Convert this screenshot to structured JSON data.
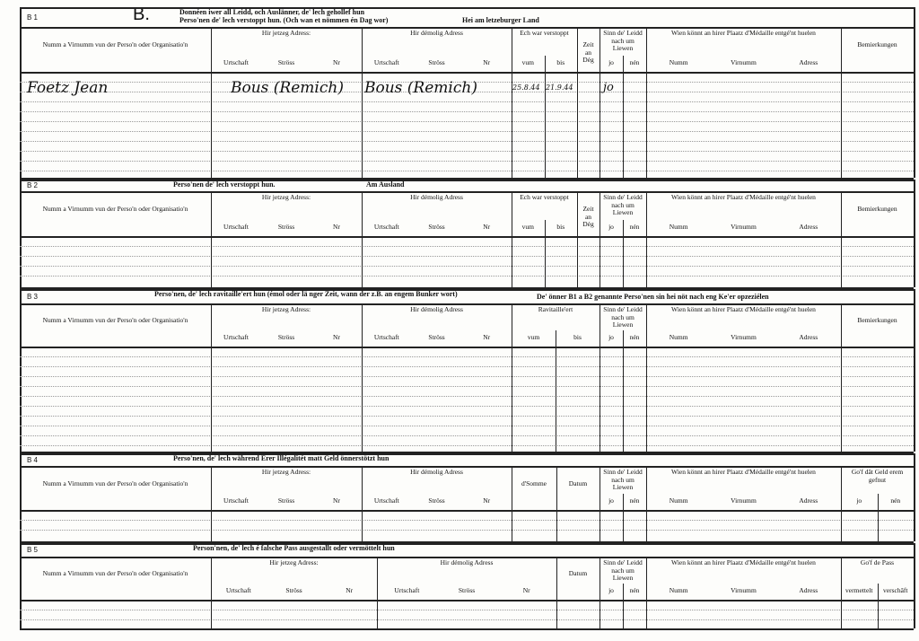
{
  "form_letter": "B.",
  "sections": [
    {
      "id": "B 1",
      "heading": [
        "Donnéen iwer all Leidd, och Auslänner, de' lech gehollef hun",
        "Perso'nen de' lech verstoppt hun. (Och wan et nömmen én Dag wor)"
      ],
      "region": "Hei am letzeburger Land",
      "columns": [
        {
          "label": "Numm a Virnumm vun der Perso'n oder Organisatio'n"
        },
        {
          "label": "Hir jetzeg Adress:",
          "sub": [
            "Urtschaft",
            "Ströss",
            "Nr"
          ]
        },
        {
          "label": "Hir démolig Adress",
          "sub": [
            "Urtschaft",
            "Ströss",
            "Nr"
          ]
        },
        {
          "label": "Ech war verstoppt",
          "sub": [
            "vum",
            "bis"
          ]
        },
        {
          "label": "Zeit an Dég"
        },
        {
          "label": "Sinn de' Leidd nach um Liewen",
          "sub": [
            "jo",
            "nén"
          ]
        },
        {
          "label": "Wien könnt an hirer Plaatz d'Médaille entgé'nt huelen",
          "sub": [
            "Numm",
            "Virnumm",
            "Adress"
          ]
        },
        {
          "label": "Bemierkungen"
        }
      ],
      "entries": [
        {
          "name": "Foetz Jean",
          "current_address": "Bous (Remich)",
          "former_address": "Bous (Remich)",
          "from": "25.8.44",
          "to": "21.9.44",
          "alive": "jo"
        }
      ]
    },
    {
      "id": "B 2",
      "heading": [
        "Perso'nen de' lech verstoppt hun."
      ],
      "region": "Am Ausland",
      "columns": [
        {
          "label": "Numm a Virnumm vun der Perso'n oder Organisatio'n"
        },
        {
          "label": "Hir jetzeg Adress:",
          "sub": [
            "Urtschaft",
            "Ströss",
            "Nr"
          ]
        },
        {
          "label": "Hir démolig Adress",
          "sub": [
            "Urtschaft",
            "Ströss",
            "Nr"
          ]
        },
        {
          "label": "Ech war verstoppt",
          "sub": [
            "vum",
            "bis"
          ]
        },
        {
          "label": "Zeit an Dég"
        },
        {
          "label": "Sinn de' Leidd nach um Liewen",
          "sub": [
            "jo",
            "nén"
          ]
        },
        {
          "label": "Wien könnt an hirer Plaatz d'Médaille entgé'nt huelen",
          "sub": [
            "Numm",
            "Virnumm",
            "Adress"
          ]
        },
        {
          "label": "Bemierkungen"
        }
      ]
    },
    {
      "id": "B 3",
      "heading": [
        "Perso'nen, de' lech ravitaille'ert hun (émol oder lä nger Zeit, wann der z.B. an engem Bunker wort)"
      ],
      "note": "De' önner B1 a B2 genannte Perso'nen sin hei nöt nach eng Ke'er opzeziélen",
      "columns": [
        {
          "label": "Numm a Virnumm vun der Perso'n oder Organisatio'n"
        },
        {
          "label": "Hir jetzeg Adress:",
          "sub": [
            "Urtschaft",
            "Ströss",
            "Nr"
          ]
        },
        {
          "label": "Hir démolig Adress",
          "sub": [
            "Urtschaft",
            "Ströss",
            "Nr"
          ]
        },
        {
          "label": "Ravitaille'ert",
          "sub": [
            "vum",
            "bis"
          ]
        },
        {
          "label": "Sinn de' Leidd nach um Liewen",
          "sub": [
            "jo",
            "nén"
          ]
        },
        {
          "label": "Wien könnt an hirer Plaatz d'Médaille entgé'nt huelen",
          "sub": [
            "Numm",
            "Virnumm",
            "Adress"
          ]
        },
        {
          "label": "Bemierkungen"
        }
      ]
    },
    {
      "id": "B 4",
      "heading": [
        "Perso'nen, de' lech während Erer Illégalitét matt Geld önnerstötzt hun"
      ],
      "columns": [
        {
          "label": "Numm a Virnumm vun der Perso'n oder Organisatio'n"
        },
        {
          "label": "Hir jetzeg Adress:",
          "sub": [
            "Urtschaft",
            "Ströss",
            "Nr"
          ]
        },
        {
          "label": "Hir démolig Adress",
          "sub": [
            "Urtschaft",
            "Ströss",
            "Nr"
          ]
        },
        {
          "label": "d'Somme"
        },
        {
          "label": "Datum"
        },
        {
          "label": "Sinn de' Leidd nach um Liewen",
          "sub": [
            "jo",
            "nén"
          ]
        },
        {
          "label": "Wien könnt an hirer Plaatz d'Médaille entgé'nt huelen",
          "sub": [
            "Numm",
            "Virnumm",
            "Adress"
          ]
        },
        {
          "label": "Go'f dât Geld erem gefnut",
          "sub": [
            "jo",
            "nén"
          ]
        }
      ]
    },
    {
      "id": "B 5",
      "heading": [
        "Person'nen, de' lech é falsche Pass ausgestallt oder vermöttelt hun"
      ],
      "columns": [
        {
          "label": "Numm a Virnumm vun der Perso'n oder Organisatio'n"
        },
        {
          "label": "Hir jetzeg Adress:",
          "sub": [
            "Urtschaft",
            "Ströss",
            "Nr"
          ]
        },
        {
          "label": "Hir démolig Adress",
          "sub": [
            "Urtschaft",
            "Ströss",
            "Nr"
          ]
        },
        {
          "label": "Datum"
        },
        {
          "label": "Sinn de' Leidd nach um Liewen",
          "sub": [
            "jo",
            "nén"
          ]
        },
        {
          "label": "Wien könnt an hirer Plaatz d'Médaille entgé'nt huelen",
          "sub": [
            "Numm",
            "Virnumm",
            "Adress"
          ]
        },
        {
          "label": "Go'f de Pass",
          "sub": [
            "vermettelt",
            "verschâft"
          ]
        }
      ]
    }
  ]
}
